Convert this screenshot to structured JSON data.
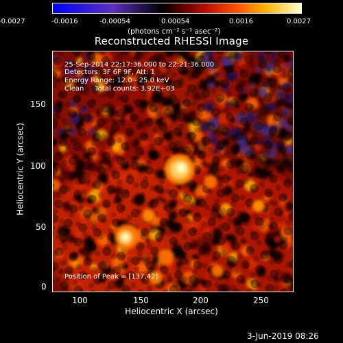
{
  "colorbar": {
    "ticks": [
      "-0.0027",
      "-0.0016",
      "-0.00054",
      "0.00054",
      "0.0016",
      "0.0027"
    ],
    "units": "(photons cm⁻² s⁻¹ asec⁻²)",
    "colors": [
      "#0000ff",
      "#5c2fc1",
      "#000000",
      "#5a0000",
      "#c01000",
      "#ff5000",
      "#ffb400",
      "#ffffcc"
    ]
  },
  "title": "Reconstructed RHESSI Image",
  "info": {
    "time_range": "25-Sep-2014 22:17:36.000 to 22:21:36.000",
    "detectors": "Detectors: 3F 6F 9F, Att: 1",
    "energy": "Energy Range: 12.0 - 25.0 keV",
    "method": "Clean     Total counts: 3.92E+03",
    "peak": "Position of Peak = [137,42]"
  },
  "axes": {
    "xlabel": "Heliocentric X (arcsec)",
    "ylabel": "Heliocentric Y (arcsec)",
    "xticks": [
      "100",
      "150",
      "200",
      "250"
    ],
    "yticks": [
      "0",
      "50",
      "100",
      "150"
    ]
  },
  "footer": {
    "date": "3-Jun-2019 08:26"
  }
}
